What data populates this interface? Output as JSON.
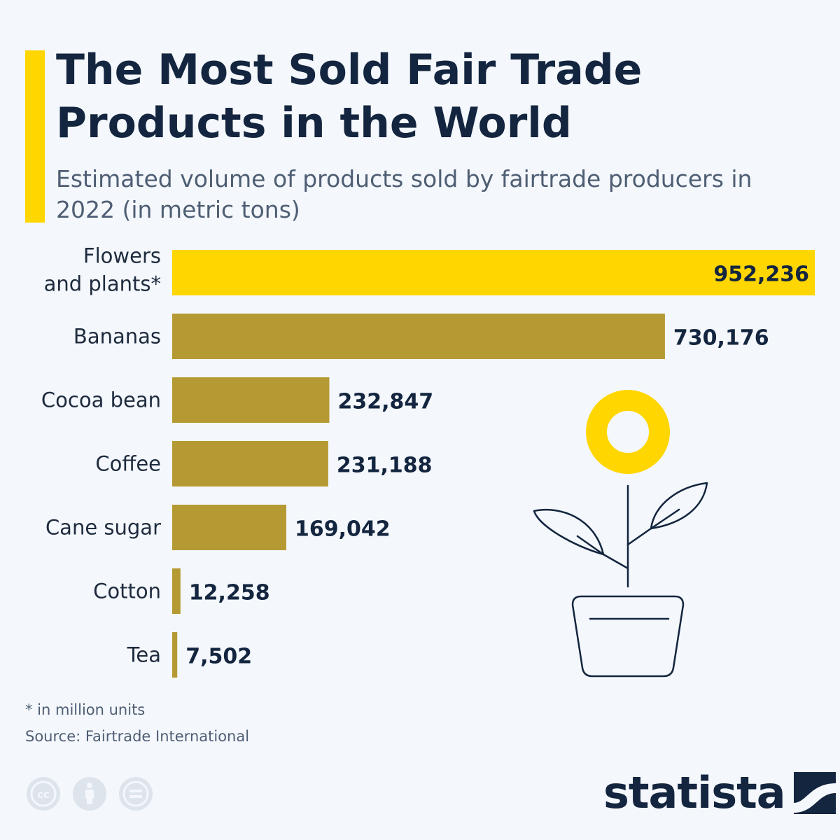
{
  "title": "The Most Sold Fair Trade Products in the World",
  "subtitle": "Estimated volume of products sold by fairtrade producers in 2022 (in metric tons)",
  "footnote": "* in million units",
  "source": "Source: Fairtrade International",
  "brand": "statista",
  "icons": [
    "cc-license-icon",
    "attribution-person-icon",
    "no-derivatives-icon",
    "statista-logo-icon",
    "sprout-pot-illustration-icon"
  ],
  "colors": {
    "highlight_bar": "#ffd600",
    "bar": "#b59a33",
    "title": "#13253f",
    "background": "#f4f7fb"
  },
  "chart_data": {
    "type": "bar",
    "orientation": "horizontal",
    "categories": [
      [
        "Flowers",
        "and plants*"
      ],
      [
        "Bananas"
      ],
      [
        "Cocoa bean"
      ],
      [
        "Coffee"
      ],
      [
        "Cane sugar"
      ],
      [
        "Cotton"
      ],
      [
        "Tea"
      ]
    ],
    "values": [
      952236,
      730176,
      232847,
      231188,
      169042,
      12258,
      7502
    ],
    "value_labels": [
      "952,236",
      "730,176",
      "232,847",
      "231,188",
      "169,042",
      "12,258",
      "7,502"
    ],
    "highlight_index": 0,
    "xlim": [
      0,
      952236
    ],
    "grid": false,
    "legend": "none"
  }
}
